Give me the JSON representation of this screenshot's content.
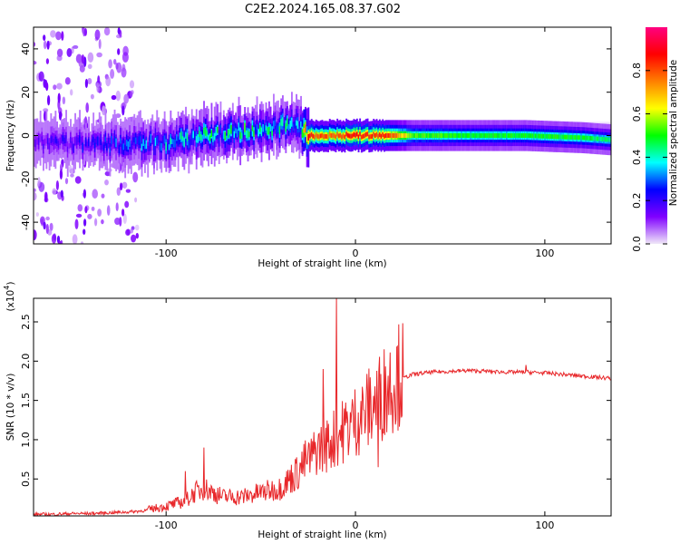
{
  "figure_title": "C2E2.2024.165.08.37.G02",
  "chart_data": [
    {
      "type": "heatmap",
      "title": "",
      "xlabel": "Height of straight line (km)",
      "ylabel": "Frequency (Hz)",
      "xlim": [
        -170,
        135
      ],
      "ylim": [
        -50,
        50
      ],
      "xticks": [
        -100,
        0,
        100
      ],
      "xtick_labels": [
        "-100",
        "0",
        "100"
      ],
      "yticks": [
        -40,
        -20,
        0,
        20,
        40
      ],
      "ytick_labels": [
        "-40",
        "-20",
        "0",
        "20",
        "40"
      ],
      "colorbar": {
        "label": "Normalized spectral amplitude",
        "range": [
          0,
          1
        ],
        "ticks": [
          0.0,
          0.2,
          0.4,
          0.6,
          0.8
        ],
        "tick_labels": [
          "0.0",
          "0.2",
          "0.4",
          "0.6",
          "0.8"
        ],
        "colors": [
          "#f0e8f8",
          "#8000ff",
          "#0000ff",
          "#00ffff",
          "#00ff00",
          "#ffff00",
          "#ff8000",
          "#ff0000",
          "#ff0080"
        ]
      },
      "ridge": {
        "x": [
          -170,
          -150,
          -130,
          -110,
          -100,
          -90,
          -80,
          -70,
          -60,
          -50,
          -40,
          -30,
          -25,
          -20,
          -10,
          0,
          10,
          15,
          30,
          60,
          90,
          120,
          135
        ],
        "center_hz": [
          -3,
          -4,
          -4,
          -4,
          -3,
          -2,
          0,
          1,
          2,
          3,
          4,
          4,
          0,
          0,
          0,
          0,
          0,
          0,
          0,
          0,
          0,
          -1,
          -2
        ],
        "peak_amplitude": [
          0.15,
          0.2,
          0.25,
          0.3,
          0.35,
          0.4,
          0.45,
          0.45,
          0.45,
          0.45,
          0.4,
          0.35,
          0.9,
          0.8,
          0.8,
          0.9,
          0.85,
          0.9,
          0.55,
          0.5,
          0.5,
          0.5,
          0.45
        ]
      }
    },
    {
      "type": "line",
      "title": "",
      "xlabel": "Height of straight line (km)",
      "ylabel": "SNR (10 * v/v)",
      "y_exponent_label": "(x10",
      "y_exponent": "4",
      "xlim": [
        -170,
        135
      ],
      "ylim": [
        0.03,
        2.8
      ],
      "xticks": [
        -100,
        0,
        100
      ],
      "xtick_labels": [
        "-100",
        "0",
        "100"
      ],
      "yticks": [
        0.5,
        1.0,
        1.5,
        2.0,
        2.5
      ],
      "ytick_labels": [
        "0.5",
        "1.0",
        "1.5",
        "2.0",
        "2.5"
      ],
      "line_color": "#e8272a",
      "series": [
        {
          "name": "SNR",
          "x": [
            -170,
            -160,
            -150,
            -140,
            -130,
            -120,
            -110,
            -100,
            -90,
            -85,
            -80,
            -75,
            -70,
            -60,
            -50,
            -40,
            -35,
            -30,
            -25,
            -20,
            -15,
            -10,
            -5,
            0,
            5,
            10,
            15,
            20,
            25,
            30,
            40,
            50,
            60,
            70,
            80,
            90,
            100,
            110,
            120,
            135
          ],
          "y": [
            0.05,
            0.05,
            0.06,
            0.06,
            0.07,
            0.08,
            0.1,
            0.14,
            0.2,
            0.3,
            0.35,
            0.3,
            0.25,
            0.25,
            0.3,
            0.35,
            0.45,
            0.55,
            0.7,
            0.85,
            0.9,
            1.0,
            1.1,
            1.2,
            1.3,
            1.4,
            1.55,
            1.7,
            1.78,
            1.83,
            1.86,
            1.87,
            1.88,
            1.87,
            1.86,
            1.86,
            1.85,
            1.83,
            1.81,
            1.78
          ]
        }
      ],
      "spikes": [
        {
          "x": -10,
          "y": 2.8
        },
        {
          "x": -17,
          "y": 1.9
        },
        {
          "x": -80,
          "y": 0.9
        },
        {
          "x": -90,
          "y": 0.6
        },
        {
          "x": 12,
          "y": 0.65
        },
        {
          "x": 90,
          "y": 1.95
        }
      ]
    }
  ]
}
